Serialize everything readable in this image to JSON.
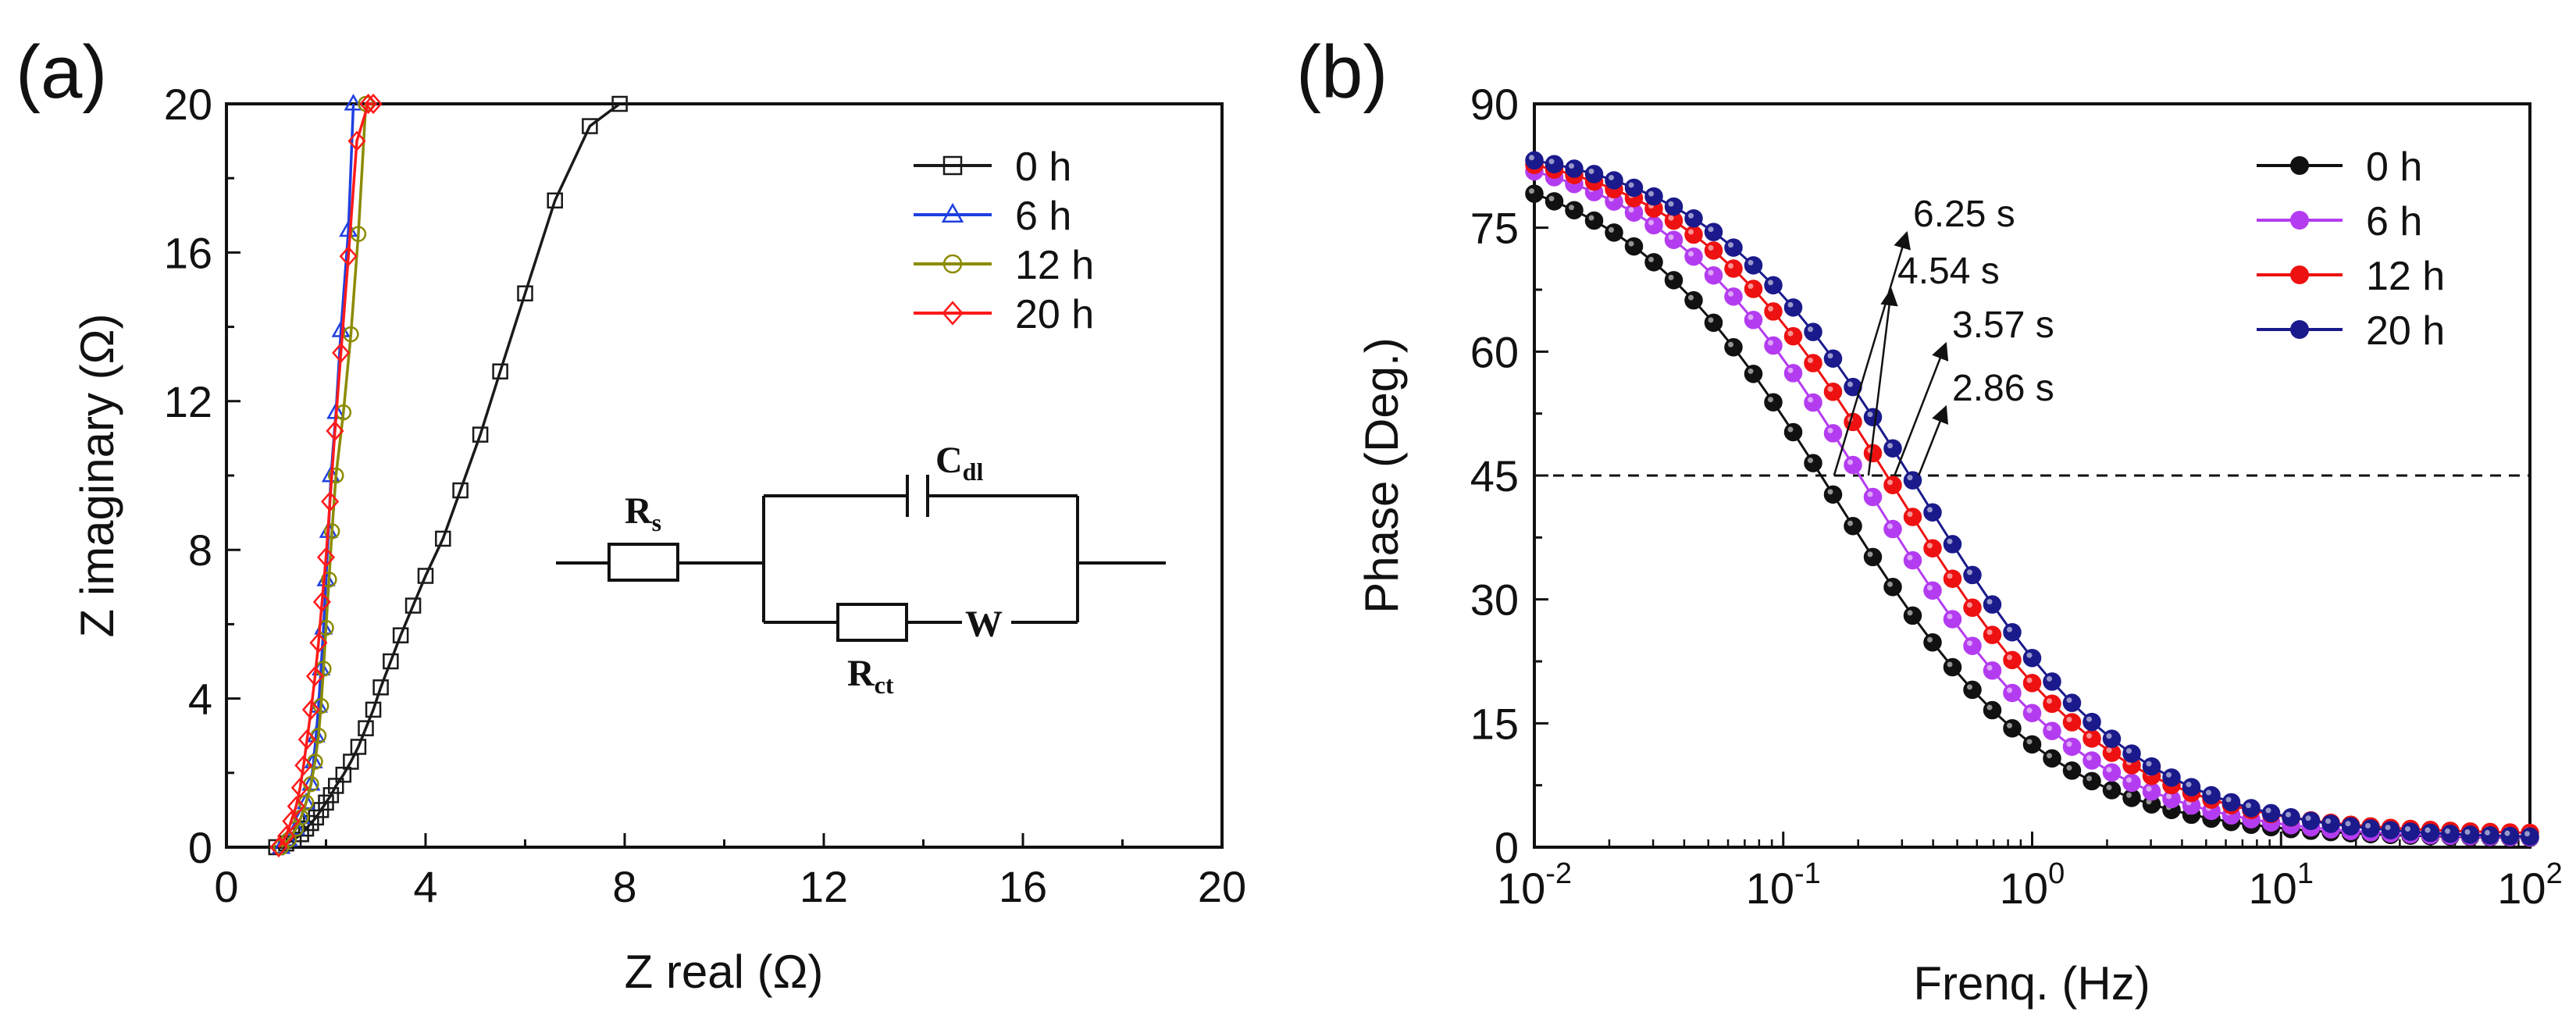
{
  "panels": {
    "a": {
      "label": "(a)"
    },
    "b": {
      "label": "(b)"
    }
  },
  "colors": {
    "a_0h": "#1a1a1a",
    "a_6h": "#1f3fe0",
    "a_12h": "#8b8b00",
    "a_20h": "#ff1a1a",
    "b_0h": "#111111",
    "b_6h": "#b43cf0",
    "b_12h": "#ee1111",
    "b_20h": "#1a1a8c"
  },
  "chart_data": [
    {
      "type": "scatter",
      "title": "",
      "xlabel": "Z real (Ω)",
      "ylabel": "Z imaginary (Ω)",
      "xlim": [
        0,
        20
      ],
      "ylim": [
        0,
        20
      ],
      "xticks": [
        0,
        4,
        8,
        12,
        16,
        20
      ],
      "yticks": [
        0,
        4,
        8,
        12,
        16,
        20
      ],
      "xtick_labels": [
        "0",
        "4",
        "8",
        "12",
        "16",
        "20"
      ],
      "ytick_labels": [
        "0",
        "4",
        "8",
        "12",
        "16",
        "20"
      ],
      "legend_position": "top-right",
      "series": [
        {
          "name": "0 h",
          "marker": "square",
          "color_key": "a_0h",
          "x": [
            1.0,
            1.2,
            1.35,
            1.5,
            1.6,
            1.7,
            1.8,
            1.9,
            2.0,
            2.1,
            2.2,
            2.35,
            2.5,
            2.65,
            2.8,
            2.95,
            3.1,
            3.3,
            3.5,
            3.75,
            4.0,
            4.35,
            4.7,
            5.1,
            5.5,
            6.0,
            6.6,
            7.3,
            7.9
          ],
          "y": [
            0.0,
            0.1,
            0.2,
            0.35,
            0.5,
            0.65,
            0.8,
            1.0,
            1.2,
            1.4,
            1.65,
            1.95,
            2.3,
            2.7,
            3.2,
            3.7,
            4.3,
            5.0,
            5.7,
            6.5,
            7.3,
            8.3,
            9.6,
            11.1,
            12.8,
            14.9,
            17.4,
            19.4,
            20.0
          ]
        },
        {
          "name": "6 h",
          "marker": "triangle",
          "color_key": "a_6h",
          "x": [
            1.1,
            1.25,
            1.4,
            1.5,
            1.6,
            1.7,
            1.75,
            1.8,
            1.85,
            1.9,
            1.95,
            2.0,
            2.05,
            2.1,
            2.2,
            2.3,
            2.45,
            2.55
          ],
          "y": [
            0.0,
            0.2,
            0.5,
            0.8,
            1.2,
            1.7,
            2.3,
            3.0,
            3.8,
            4.8,
            5.9,
            7.2,
            8.5,
            10.0,
            11.7,
            13.9,
            16.6,
            20.0
          ]
        },
        {
          "name": "12 h",
          "marker": "circle",
          "color_key": "a_12h",
          "x": [
            1.1,
            1.25,
            1.4,
            1.5,
            1.6,
            1.7,
            1.78,
            1.85,
            1.9,
            1.95,
            2.0,
            2.06,
            2.12,
            2.2,
            2.35,
            2.5,
            2.65,
            2.8
          ],
          "y": [
            0.0,
            0.2,
            0.5,
            0.8,
            1.2,
            1.7,
            2.3,
            3.0,
            3.8,
            4.8,
            5.9,
            7.2,
            8.5,
            10.0,
            11.7,
            13.8,
            16.5,
            20.0
          ]
        },
        {
          "name": "20 h",
          "marker": "diamond",
          "color_key": "a_20h",
          "x": [
            1.05,
            1.2,
            1.3,
            1.4,
            1.48,
            1.55,
            1.62,
            1.7,
            1.78,
            1.85,
            1.92,
            2.0,
            2.08,
            2.18,
            2.3,
            2.45,
            2.62,
            2.85,
            2.95
          ],
          "y": [
            0.0,
            0.3,
            0.7,
            1.1,
            1.6,
            2.2,
            2.9,
            3.7,
            4.6,
            5.5,
            6.6,
            7.8,
            9.3,
            11.2,
            13.3,
            15.9,
            19.0,
            20.0,
            20.0
          ]
        }
      ],
      "inset_circuit": {
        "labels": {
          "rs_main": "R",
          "rs_sub": "s",
          "cdl_main": "C",
          "cdl_sub": "dl",
          "rct_main": "R",
          "rct_sub": "ct",
          "w": "W"
        }
      }
    },
    {
      "type": "line",
      "title": "",
      "xlabel": "Frenq. (Hz)",
      "ylabel": "Phase (Deg.)",
      "xscale": "log",
      "xlim": [
        0.01,
        100
      ],
      "ylim": [
        0,
        90
      ],
      "xticks": [
        0.01,
        0.1,
        1,
        10,
        100
      ],
      "xtick_base": "10",
      "xtick_exponents": [
        "-2",
        "-1",
        "0",
        "1",
        "2"
      ],
      "yticks": [
        0,
        15,
        30,
        45,
        60,
        75,
        90
      ],
      "ytick_labels": [
        "0",
        "15",
        "30",
        "45",
        "60",
        "75",
        "90"
      ],
      "reference_line": {
        "y": 45,
        "style": "dashed"
      },
      "legend_position": "top-right",
      "series": [
        {
          "name": "0 h",
          "color_key": "b_0h",
          "fc": 0.16,
          "max": 84.0,
          "min": 1.0
        },
        {
          "name": "6 h",
          "color_key": "b_6h",
          "fc": 0.22,
          "max": 85.5,
          "min": 1.0
        },
        {
          "name": "12 h",
          "color_key": "b_12h",
          "fc": 0.28,
          "max": 85.5,
          "min": 1.5
        },
        {
          "name": "20 h",
          "color_key": "b_20h",
          "fc": 0.35,
          "max": 85.5,
          "min": 1.0
        }
      ],
      "annotations": [
        {
          "text": "6.25 s",
          "x": 0.16,
          "y": 45
        },
        {
          "text": "4.54 s",
          "x": 0.22,
          "y": 45
        },
        {
          "text": "3.57 s",
          "x": 0.28,
          "y": 45
        },
        {
          "text": "2.86 s",
          "x": 0.35,
          "y": 45
        }
      ]
    }
  ]
}
